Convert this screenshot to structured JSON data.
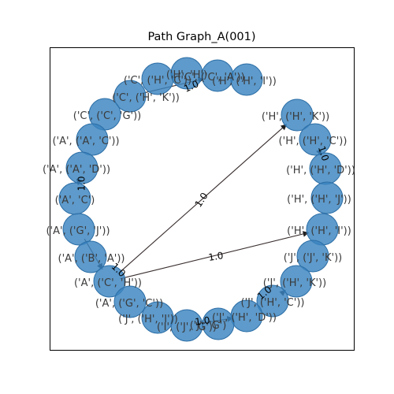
{
  "title": "Path Graph_A(001)",
  "nodes": [
    {
      "label": "('C', ('H', 'C'))"
    },
    {
      "label": "('C', ('H', 'K'))"
    },
    {
      "label": "('H', 'H')"
    },
    {
      "label": "('C', ('C', 'A'))"
    },
    {
      "label": "('H', ('H', 'I'))"
    },
    {
      "label": "('C', ('C', 'G'))"
    },
    {
      "label": "('H', ('H', 'K'))"
    },
    {
      "label": "('A', ('A', 'C'))"
    },
    {
      "label": "('H', ('H', 'C'))"
    },
    {
      "label": "('A', ('A', 'D'))"
    },
    {
      "label": "('H', ('H', 'D'))"
    },
    {
      "label": "('A', 'C')"
    },
    {
      "label": "('H', ('H', 'J'))"
    },
    {
      "label": "('A', ('G', 'J'))"
    },
    {
      "label": "('H', ('H', 'I'))"
    },
    {
      "label": "('A', ('B', 'A'))"
    },
    {
      "label": "('J', ('J', 'K'))"
    },
    {
      "label": "('A', ('C', 'H'))"
    },
    {
      "label": "('J', ('H', 'K'))"
    },
    {
      "label": "('A', ('G', 'C'))"
    },
    {
      "label": "('J', ('H', 'C'))"
    },
    {
      "label": "('J', ('H', 'I'))"
    },
    {
      "label": "('J', ('H', 'D'))"
    },
    {
      "label": "('I', ('J', 'G'))"
    },
    {
      "label": "('J', 'G')"
    }
  ],
  "edges": [
    {
      "label": "1.0"
    },
    {
      "label": "1.0"
    },
    {
      "label": "1.0"
    },
    {
      "label": "1.0"
    },
    {
      "label": "1.0"
    },
    {
      "label": "1.0"
    },
    {
      "label": "1.0"
    },
    {
      "label": "1.0"
    }
  ]
}
